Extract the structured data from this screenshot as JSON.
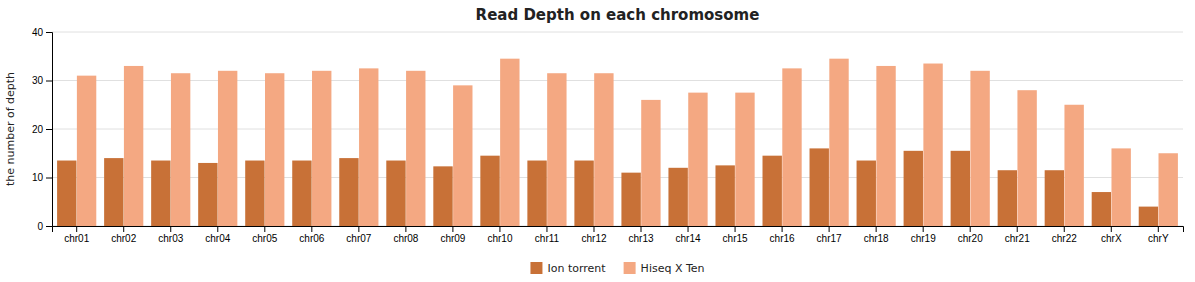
{
  "chart_data": {
    "type": "bar",
    "title": "Read Depth on each chromosome",
    "ylabel": "the number of depth",
    "categories": [
      "chr01",
      "chr02",
      "chr03",
      "chr04",
      "chr05",
      "chr06",
      "chr07",
      "chr08",
      "chr09",
      "chr10",
      "chr11",
      "chr12",
      "chr13",
      "chr14",
      "chr15",
      "chr16",
      "chr17",
      "chr18",
      "chr19",
      "chr20",
      "chr21",
      "chr22",
      "chrX",
      "chrY"
    ],
    "series": [
      {
        "name": "Ion torrent",
        "color": "#C87137",
        "values": [
          13.5,
          14.0,
          13.5,
          13.0,
          13.5,
          13.5,
          14.0,
          13.5,
          12.3,
          14.5,
          13.5,
          13.5,
          11.0,
          12.0,
          12.5,
          14.5,
          16.0,
          13.5,
          15.5,
          15.5,
          11.5,
          11.5,
          7.0,
          4.0
        ]
      },
      {
        "name": "Hiseq X Ten",
        "color": "#F4A882",
        "values": [
          31.0,
          33.0,
          31.5,
          32.0,
          31.5,
          32.0,
          32.5,
          32.0,
          29.0,
          34.5,
          31.5,
          31.5,
          26.0,
          27.5,
          27.5,
          32.5,
          34.5,
          33.0,
          33.5,
          32.0,
          28.0,
          25.0,
          16.0,
          15.0
        ]
      }
    ],
    "ylim": [
      0,
      40
    ],
    "yticks": [
      0,
      10,
      20,
      30,
      40
    ],
    "grid": true,
    "legend": "bottom"
  }
}
